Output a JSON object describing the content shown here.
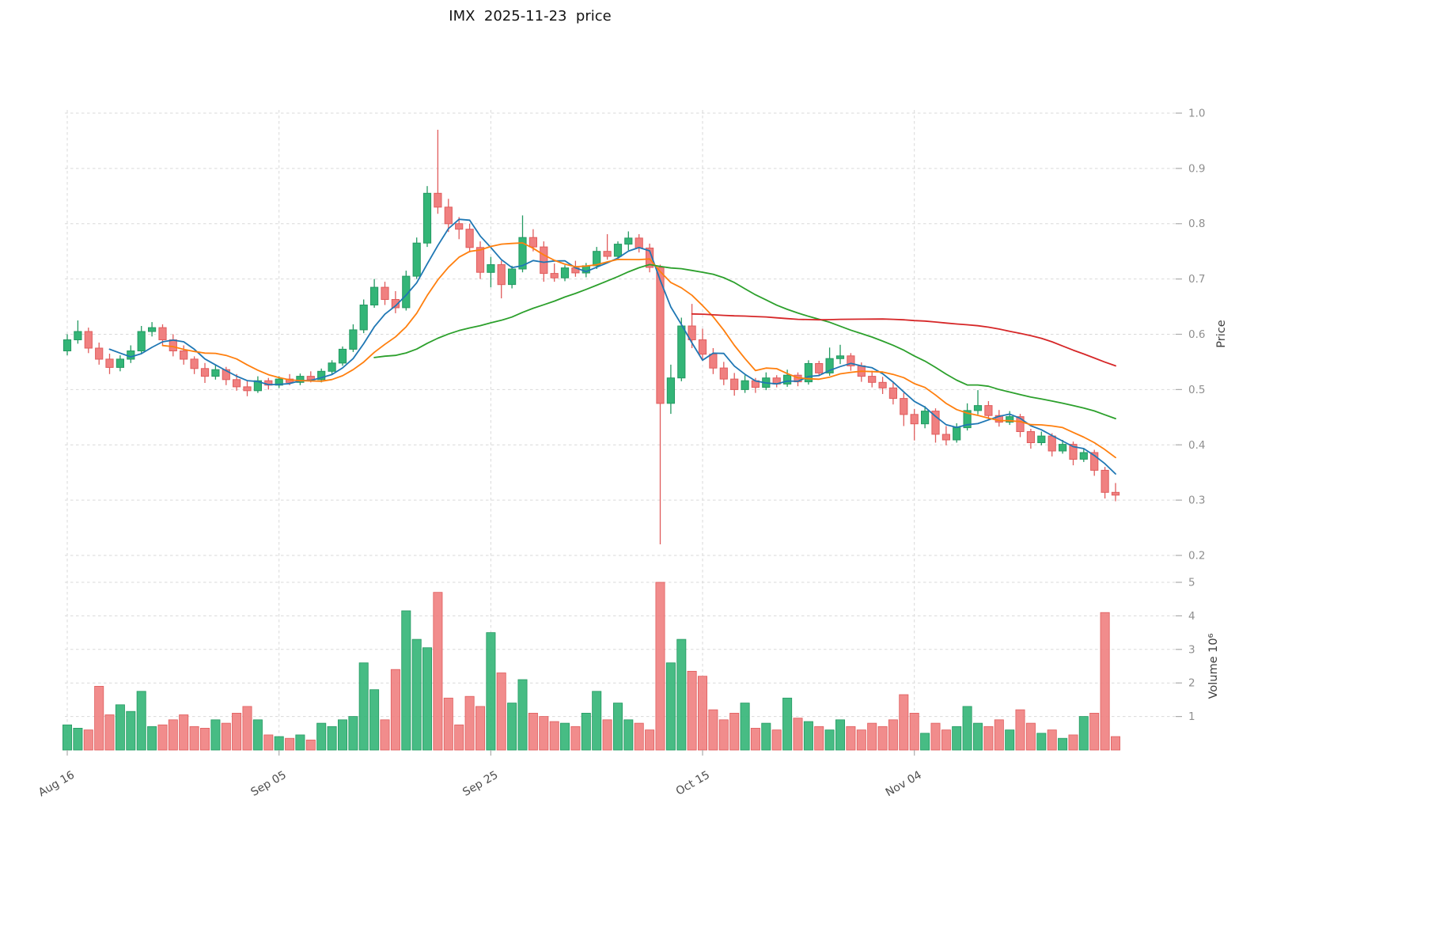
{
  "title": "IMX  2025-11-23  price",
  "axes": {
    "price_label": "Price",
    "volume_label": "Volume  10⁶",
    "price_ticks": [
      0.2,
      0.3,
      0.4,
      0.5,
      0.6,
      0.7,
      0.8,
      0.9,
      1.0
    ],
    "volume_ticks": [
      1,
      2,
      3,
      4,
      5
    ],
    "x_ticks": [
      {
        "index": 0,
        "label": "Aug 16"
      },
      {
        "index": 20,
        "label": "Sep 05"
      },
      {
        "index": 40,
        "label": "Sep 25"
      },
      {
        "index": 60,
        "label": "Oct 15"
      },
      {
        "index": 80,
        "label": "Nov 04"
      }
    ]
  },
  "colors": {
    "up": "#33b577",
    "up_edge": "#239961",
    "down": "#f08080",
    "down_edge": "#e05c5c",
    "ma_blue": "#1f77b4",
    "ma_orange": "#ff7f0e",
    "ma_green": "#2ca02c",
    "ma_red": "#d62728",
    "grid": "#d9d9d9",
    "tick_mark": "#ababab",
    "background": "#ffffff"
  },
  "chart_data": {
    "type": "candlestick",
    "symbol": "IMX",
    "as_of_date": "2025-11-23",
    "title": "IMX  2025-11-23  price",
    "ylabel": "Price",
    "ylabel_secondary": "Volume 10⁶",
    "ylim": [
      0.2,
      1.0
    ],
    "volume_ylim_millions": [
      0,
      5
    ],
    "x_range": [
      "2025-08-16",
      "2025-11-23"
    ],
    "grid": true,
    "legend": false,
    "columns": [
      "date",
      "open",
      "high",
      "low",
      "close",
      "volume_millions"
    ],
    "moving_averages": [
      {
        "name": "MA5",
        "window": 5,
        "color": "#1f77b4"
      },
      {
        "name": "MA10",
        "window": 10,
        "color": "#ff7f0e"
      },
      {
        "name": "MA30",
        "window": 30,
        "color": "#2ca02c"
      },
      {
        "name": "MA60",
        "window": 60,
        "color": "#d62728"
      }
    ],
    "ohlcv": [
      [
        "2025-08-16",
        0.57,
        0.6,
        0.562,
        0.59,
        0.75
      ],
      [
        "2025-08-17",
        0.59,
        0.625,
        0.583,
        0.605,
        0.65
      ],
      [
        "2025-08-18",
        0.605,
        0.612,
        0.566,
        0.575,
        0.6
      ],
      [
        "2025-08-19",
        0.575,
        0.585,
        0.545,
        0.555,
        1.9
      ],
      [
        "2025-08-20",
        0.555,
        0.565,
        0.528,
        0.54,
        1.05
      ],
      [
        "2025-08-21",
        0.54,
        0.562,
        0.533,
        0.555,
        1.35
      ],
      [
        "2025-08-22",
        0.555,
        0.58,
        0.548,
        0.57,
        1.15
      ],
      [
        "2025-08-23",
        0.57,
        0.615,
        0.565,
        0.605,
        1.75
      ],
      [
        "2025-08-24",
        0.605,
        0.622,
        0.596,
        0.612,
        0.7
      ],
      [
        "2025-08-25",
        0.612,
        0.618,
        0.58,
        0.59,
        0.75
      ],
      [
        "2025-08-26",
        0.59,
        0.6,
        0.56,
        0.57,
        0.9
      ],
      [
        "2025-08-27",
        0.57,
        0.58,
        0.545,
        0.555,
        1.05
      ],
      [
        "2025-08-28",
        0.555,
        0.56,
        0.528,
        0.538,
        0.7
      ],
      [
        "2025-08-29",
        0.538,
        0.548,
        0.512,
        0.524,
        0.65
      ],
      [
        "2025-08-30",
        0.524,
        0.545,
        0.518,
        0.536,
        0.9
      ],
      [
        "2025-08-31",
        0.536,
        0.541,
        0.508,
        0.518,
        0.8
      ],
      [
        "2025-09-01",
        0.518,
        0.528,
        0.498,
        0.505,
        1.1
      ],
      [
        "2025-09-02",
        0.505,
        0.515,
        0.488,
        0.498,
        1.3
      ],
      [
        "2025-09-03",
        0.498,
        0.524,
        0.494,
        0.516,
        0.9
      ],
      [
        "2025-09-04",
        0.516,
        0.521,
        0.5,
        0.508,
        0.45
      ],
      [
        "2025-09-05",
        0.508,
        0.524,
        0.503,
        0.519,
        0.4
      ],
      [
        "2025-09-06",
        0.519,
        0.528,
        0.508,
        0.513,
        0.35
      ],
      [
        "2025-09-07",
        0.513,
        0.529,
        0.508,
        0.524,
        0.45
      ],
      [
        "2025-09-08",
        0.524,
        0.533,
        0.513,
        0.518,
        0.3
      ],
      [
        "2025-09-09",
        0.518,
        0.538,
        0.513,
        0.533,
        0.8
      ],
      [
        "2025-09-10",
        0.533,
        0.553,
        0.528,
        0.548,
        0.7
      ],
      [
        "2025-09-11",
        0.548,
        0.578,
        0.543,
        0.573,
        0.9
      ],
      [
        "2025-09-12",
        0.573,
        0.618,
        0.568,
        0.608,
        1.0
      ],
      [
        "2025-09-13",
        0.608,
        0.663,
        0.602,
        0.653,
        2.6
      ],
      [
        "2025-09-14",
        0.653,
        0.7,
        0.648,
        0.685,
        1.8
      ],
      [
        "2025-09-15",
        0.685,
        0.695,
        0.653,
        0.663,
        0.9
      ],
      [
        "2025-09-16",
        0.663,
        0.678,
        0.638,
        0.648,
        2.4
      ],
      [
        "2025-09-17",
        0.648,
        0.715,
        0.643,
        0.705,
        4.15
      ],
      [
        "2025-09-18",
        0.705,
        0.775,
        0.7,
        0.765,
        3.3
      ],
      [
        "2025-09-19",
        0.765,
        0.868,
        0.758,
        0.855,
        3.05
      ],
      [
        "2025-09-20",
        0.855,
        0.97,
        0.818,
        0.83,
        4.7
      ],
      [
        "2025-09-21",
        0.83,
        0.845,
        0.785,
        0.8,
        1.55
      ],
      [
        "2025-09-22",
        0.8,
        0.812,
        0.772,
        0.79,
        0.75
      ],
      [
        "2025-09-23",
        0.79,
        0.8,
        0.748,
        0.757,
        1.6
      ],
      [
        "2025-09-24",
        0.757,
        0.768,
        0.7,
        0.712,
        1.3
      ],
      [
        "2025-09-25",
        0.712,
        0.74,
        0.685,
        0.726,
        3.5
      ],
      [
        "2025-09-26",
        0.726,
        0.733,
        0.665,
        0.69,
        2.3
      ],
      [
        "2025-09-27",
        0.69,
        0.724,
        0.683,
        0.718,
        1.4
      ],
      [
        "2025-09-28",
        0.718,
        0.815,
        0.712,
        0.775,
        2.1
      ],
      [
        "2025-09-29",
        0.775,
        0.79,
        0.75,
        0.758,
        1.1
      ],
      [
        "2025-09-30",
        0.758,
        0.768,
        0.695,
        0.71,
        1.0
      ],
      [
        "2025-10-01",
        0.71,
        0.728,
        0.695,
        0.702,
        0.85
      ],
      [
        "2025-10-02",
        0.702,
        0.725,
        0.696,
        0.72,
        0.8
      ],
      [
        "2025-10-03",
        0.72,
        0.733,
        0.704,
        0.711,
        0.7
      ],
      [
        "2025-10-04",
        0.711,
        0.729,
        0.703,
        0.724,
        1.1
      ],
      [
        "2025-10-05",
        0.724,
        0.758,
        0.718,
        0.75,
        1.75
      ],
      [
        "2025-10-06",
        0.75,
        0.781,
        0.735,
        0.741,
        0.9
      ],
      [
        "2025-10-07",
        0.741,
        0.768,
        0.734,
        0.763,
        1.4
      ],
      [
        "2025-10-08",
        0.763,
        0.786,
        0.752,
        0.774,
        0.9
      ],
      [
        "2025-10-09",
        0.774,
        0.781,
        0.748,
        0.756,
        0.8
      ],
      [
        "2025-10-10",
        0.756,
        0.764,
        0.712,
        0.721,
        0.6
      ],
      [
        "2025-10-11",
        0.721,
        0.726,
        0.22,
        0.475,
        5.0
      ],
      [
        "2025-10-12",
        0.475,
        0.545,
        0.456,
        0.521,
        2.6
      ],
      [
        "2025-10-13",
        0.521,
        0.63,
        0.515,
        0.615,
        3.3
      ],
      [
        "2025-10-14",
        0.615,
        0.655,
        0.575,
        0.59,
        2.35
      ],
      [
        "2025-10-15",
        0.59,
        0.61,
        0.553,
        0.564,
        2.2
      ],
      [
        "2025-10-16",
        0.564,
        0.575,
        0.528,
        0.539,
        1.2
      ],
      [
        "2025-10-17",
        0.539,
        0.55,
        0.508,
        0.519,
        0.9
      ],
      [
        "2025-10-18",
        0.519,
        0.53,
        0.489,
        0.5,
        1.1
      ],
      [
        "2025-10-19",
        0.5,
        0.526,
        0.494,
        0.516,
        1.4
      ],
      [
        "2025-10-20",
        0.516,
        0.521,
        0.494,
        0.504,
        0.65
      ],
      [
        "2025-10-21",
        0.504,
        0.531,
        0.499,
        0.521,
        0.8
      ],
      [
        "2025-10-22",
        0.521,
        0.526,
        0.504,
        0.51,
        0.6
      ],
      [
        "2025-10-23",
        0.51,
        0.536,
        0.505,
        0.526,
        1.55
      ],
      [
        "2025-10-24",
        0.526,
        0.531,
        0.506,
        0.514,
        0.95
      ],
      [
        "2025-10-25",
        0.514,
        0.553,
        0.509,
        0.547,
        0.85
      ],
      [
        "2025-10-26",
        0.547,
        0.552,
        0.524,
        0.53,
        0.7
      ],
      [
        "2025-10-27",
        0.53,
        0.576,
        0.525,
        0.556,
        0.6
      ],
      [
        "2025-10-28",
        0.556,
        0.581,
        0.546,
        0.561,
        0.9
      ],
      [
        "2025-10-29",
        0.561,
        0.566,
        0.534,
        0.543,
        0.7
      ],
      [
        "2025-10-30",
        0.543,
        0.549,
        0.514,
        0.524,
        0.6
      ],
      [
        "2025-10-31",
        0.524,
        0.534,
        0.504,
        0.513,
        0.8
      ],
      [
        "2025-11-01",
        0.513,
        0.523,
        0.492,
        0.503,
        0.7
      ],
      [
        "2025-11-02",
        0.503,
        0.513,
        0.473,
        0.484,
        0.9
      ],
      [
        "2025-11-03",
        0.484,
        0.494,
        0.434,
        0.455,
        1.65
      ],
      [
        "2025-11-04",
        0.455,
        0.465,
        0.408,
        0.438,
        1.1
      ],
      [
        "2025-11-05",
        0.438,
        0.47,
        0.43,
        0.461,
        0.5
      ],
      [
        "2025-11-06",
        0.461,
        0.466,
        0.404,
        0.419,
        0.8
      ],
      [
        "2025-11-07",
        0.419,
        0.434,
        0.399,
        0.409,
        0.6
      ],
      [
        "2025-11-08",
        0.409,
        0.439,
        0.404,
        0.431,
        0.7
      ],
      [
        "2025-11-09",
        0.431,
        0.475,
        0.426,
        0.462,
        1.3
      ],
      [
        "2025-11-10",
        0.462,
        0.499,
        0.455,
        0.471,
        0.8
      ],
      [
        "2025-11-11",
        0.471,
        0.479,
        0.444,
        0.453,
        0.7
      ],
      [
        "2025-11-12",
        0.453,
        0.463,
        0.433,
        0.441,
        0.9
      ],
      [
        "2025-11-13",
        0.441,
        0.461,
        0.436,
        0.451,
        0.6
      ],
      [
        "2025-11-14",
        0.451,
        0.456,
        0.414,
        0.424,
        1.2
      ],
      [
        "2025-11-15",
        0.424,
        0.429,
        0.393,
        0.404,
        0.8
      ],
      [
        "2025-11-16",
        0.404,
        0.424,
        0.399,
        0.416,
        0.5
      ],
      [
        "2025-11-17",
        0.416,
        0.421,
        0.379,
        0.389,
        0.6
      ],
      [
        "2025-11-18",
        0.389,
        0.409,
        0.384,
        0.401,
        0.35
      ],
      [
        "2025-11-19",
        0.401,
        0.406,
        0.363,
        0.374,
        0.45
      ],
      [
        "2025-11-20",
        0.374,
        0.394,
        0.369,
        0.386,
        1.0
      ],
      [
        "2025-11-21",
        0.386,
        0.391,
        0.344,
        0.354,
        1.1
      ],
      [
        "2025-11-22",
        0.354,
        0.36,
        0.303,
        0.314,
        4.1
      ],
      [
        "2025-11-23",
        0.314,
        0.331,
        0.298,
        0.309,
        0.4
      ]
    ]
  }
}
